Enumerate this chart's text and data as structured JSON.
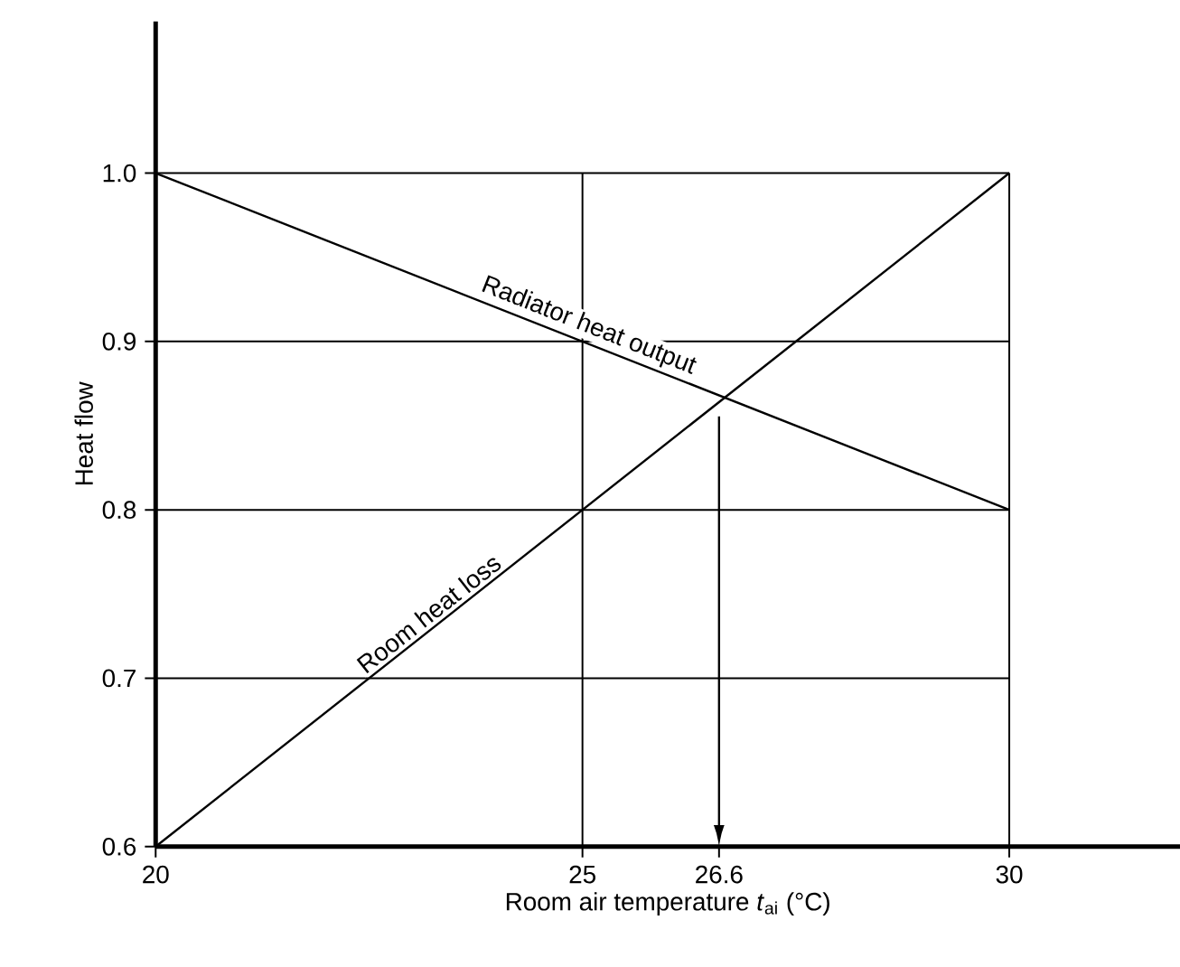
{
  "chart_data": {
    "type": "line",
    "xlabel": "Room air temperature *t*$_{ai}$ (°C)",
    "ylabel": "Heat flow",
    "xlim": [
      20,
      32
    ],
    "ylim": [
      0.6,
      1.09
    ],
    "xticks": [
      20,
      25,
      {
        "value": 26.6,
        "label": "26.6"
      },
      30
    ],
    "yticks": [
      {
        "value": 0.6,
        "label": "0.6"
      },
      {
        "value": 0.7,
        "label": "0.7"
      },
      {
        "value": 0.8,
        "label": "0.8"
      },
      {
        "value": 0.9,
        "label": "0.9"
      },
      {
        "value": 1.0,
        "label": "1.0"
      }
    ],
    "x": [
      20,
      30
    ],
    "series": [
      {
        "name": "Radiator heat output",
        "color": "#000000",
        "values": [
          1.0,
          0.8
        ]
      },
      {
        "name": "Room heat loss",
        "color": "#000000",
        "values": [
          0.6,
          1.0
        ]
      }
    ],
    "ref_lines": [
      {
        "axis": "x",
        "value": 26.6,
        "color": "#000000",
        "line_style": "solid"
      }
    ],
    "grid": true,
    "marker": "none",
    "line_style": "solid"
  }
}
